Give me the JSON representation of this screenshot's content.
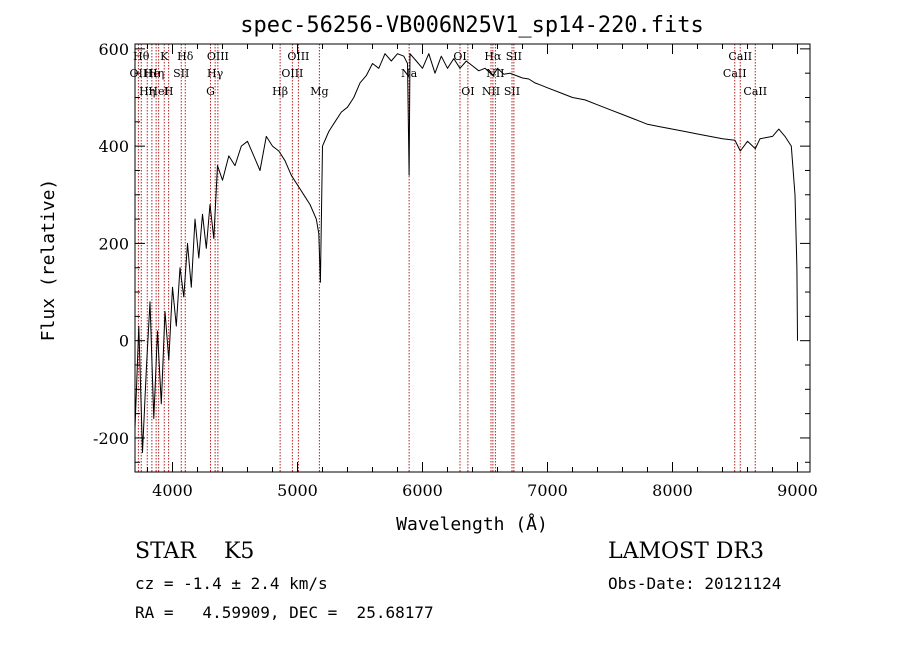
{
  "chart_data": {
    "type": "line",
    "title": "spec-56256-VB006N25V1_sp14-220.fits",
    "xlabel": "Wavelength (Å)",
    "ylabel": "Flux (relative)",
    "xlim": [
      3700,
      9100
    ],
    "ylim": [
      -270,
      610
    ],
    "xticks": [
      4000,
      5000,
      6000,
      7000,
      8000,
      9000
    ],
    "yticks": [
      -200,
      0,
      200,
      400,
      600
    ],
    "grid": false,
    "line_color": "#000000",
    "marker_color": "#b22222",
    "series": [
      {
        "name": "flux",
        "x": [
          3700,
          3730,
          3760,
          3790,
          3820,
          3850,
          3880,
          3910,
          3940,
          3970,
          4000,
          4030,
          4060,
          4090,
          4120,
          4150,
          4180,
          4210,
          4240,
          4270,
          4300,
          4330,
          4360,
          4400,
          4450,
          4500,
          4550,
          4600,
          4650,
          4700,
          4750,
          4800,
          4850,
          4900,
          4950,
          5000,
          5050,
          5100,
          5150,
          5170,
          5183,
          5200,
          5250,
          5300,
          5350,
          5400,
          5450,
          5500,
          5550,
          5600,
          5650,
          5700,
          5750,
          5800,
          5850,
          5880,
          5893,
          5900,
          5950,
          6000,
          6050,
          6100,
          6150,
          6200,
          6250,
          6300,
          6350,
          6400,
          6450,
          6500,
          6563,
          6600,
          6650,
          6700,
          6750,
          6800,
          6850,
          6900,
          6950,
          7000,
          7100,
          7200,
          7300,
          7400,
          7500,
          7600,
          7700,
          7800,
          7900,
          8000,
          8100,
          8200,
          8300,
          8400,
          8500,
          8542,
          8600,
          8662,
          8700,
          8800,
          8850,
          8900,
          8950,
          8980,
          8995,
          9000
        ],
        "y": [
          -180,
          30,
          -230,
          -60,
          80,
          -160,
          20,
          -130,
          60,
          -40,
          110,
          30,
          150,
          90,
          200,
          110,
          250,
          170,
          260,
          190,
          280,
          210,
          360,
          330,
          380,
          360,
          400,
          410,
          380,
          350,
          420,
          400,
          390,
          370,
          340,
          320,
          300,
          280,
          250,
          220,
          120,
          400,
          430,
          450,
          470,
          480,
          500,
          530,
          545,
          570,
          560,
          590,
          575,
          590,
          585,
          570,
          340,
          590,
          575,
          560,
          590,
          550,
          585,
          560,
          580,
          560,
          575,
          565,
          555,
          560,
          545,
          560,
          548,
          550,
          545,
          540,
          538,
          530,
          525,
          520,
          510,
          500,
          495,
          485,
          475,
          465,
          455,
          445,
          440,
          435,
          430,
          425,
          420,
          415,
          412,
          390,
          410,
          395,
          415,
          420,
          435,
          420,
          400,
          300,
          150,
          0
        ]
      }
    ],
    "line_markers": [
      {
        "x": 3727,
        "label": "OII",
        "row": 2
      },
      {
        "x": 3750,
        "label": "Hθ",
        "row": 1
      },
      {
        "x": 3798,
        "label": "Hη",
        "row": 3
      },
      {
        "x": 3835,
        "label": "He",
        "row": 2
      },
      {
        "x": 3869,
        "label": "Hη",
        "row": 2
      },
      {
        "x": 3889,
        "label": "HeI",
        "row": 3
      },
      {
        "x": 3934,
        "label": "K",
        "row": 1
      },
      {
        "x": 3969,
        "label": "H",
        "row": 3
      },
      {
        "x": 4070,
        "label": "SII",
        "row": 2
      },
      {
        "x": 4102,
        "label": "Hδ",
        "row": 1
      },
      {
        "x": 4304,
        "label": "G",
        "row": 3
      },
      {
        "x": 4341,
        "label": "Hγ",
        "row": 2
      },
      {
        "x": 4363,
        "label": "OIII",
        "row": 1
      },
      {
        "x": 4861,
        "label": "Hβ",
        "row": 3
      },
      {
        "x": 4959,
        "label": "OIII",
        "row": 2
      },
      {
        "x": 5007,
        "label": "OIII",
        "row": 1
      },
      {
        "x": 5175,
        "label": "Mg",
        "row": 3
      },
      {
        "x": 5893,
        "label": "Na",
        "row": 2
      },
      {
        "x": 6300,
        "label": "OI",
        "row": 1
      },
      {
        "x": 6363,
        "label": "OI",
        "row": 3
      },
      {
        "x": 6548,
        "label": "NII",
        "row": 3
      },
      {
        "x": 6563,
        "label": "Hα",
        "row": 1
      },
      {
        "x": 6583,
        "label": "NII",
        "row": 2
      },
      {
        "x": 6716,
        "label": "SII",
        "row": 3
      },
      {
        "x": 6731,
        "label": "SII",
        "row": 1
      },
      {
        "x": 8498,
        "label": "CaII",
        "row": 2
      },
      {
        "x": 8542,
        "label": "CaII",
        "row": 1
      },
      {
        "x": 8662,
        "label": "CaII",
        "row": 3
      }
    ]
  },
  "info": {
    "class_label": "STAR    K5",
    "cz_line": "cz = -1.4 ± 2.4 km/s",
    "radec_line": "RA =   4.59909, DEC =  25.68177",
    "survey": "LAMOST DR3",
    "obs_date_line": "Obs-Date: 20121124"
  }
}
